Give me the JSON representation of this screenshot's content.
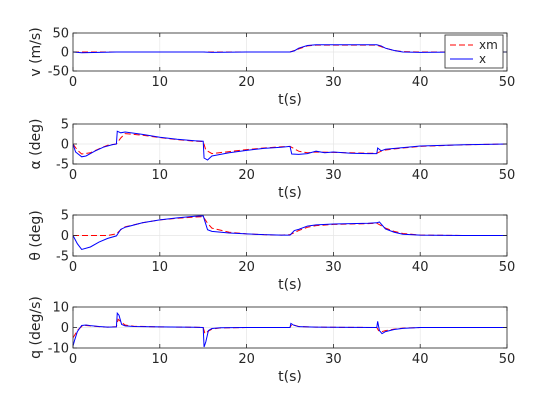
{
  "chart_data": [
    {
      "type": "line",
      "ylabel": "v (m/s)",
      "xlabel": "t(s)",
      "xlim": [
        0,
        50
      ],
      "ylim": [
        -50,
        50
      ],
      "xticks": [
        "0",
        "10",
        "20",
        "30",
        "40",
        "50"
      ],
      "yticks": [
        "-50",
        "0",
        "50"
      ],
      "grid": true,
      "legend": {
        "placement": "top-right",
        "entries": [
          "xm",
          "x"
        ]
      },
      "series": [
        {
          "name": "xm",
          "color": "#ff0000",
          "dash": "dashed",
          "x": [
            0,
            5,
            10,
            15,
            20,
            25,
            26,
            27,
            28,
            30,
            33,
            35,
            36,
            37,
            38,
            40,
            45,
            50
          ],
          "y": [
            0,
            0,
            0,
            0,
            0,
            0,
            8,
            16,
            18,
            18,
            18,
            18,
            10,
            4,
            1,
            0,
            0,
            0
          ]
        },
        {
          "name": "x",
          "color": "#0000ff",
          "dash": "solid",
          "x": [
            0,
            1,
            5,
            6,
            10,
            15,
            16,
            20,
            25,
            25.5,
            26,
            27,
            28,
            30,
            33,
            35,
            35.5,
            36,
            37,
            38,
            40,
            45,
            50
          ],
          "y": [
            0,
            -2,
            0,
            0,
            0,
            0,
            -1,
            0,
            0,
            3,
            10,
            17,
            19,
            19,
            19,
            19,
            16,
            10,
            4,
            0,
            -1,
            0,
            0
          ]
        }
      ]
    },
    {
      "type": "line",
      "ylabel": "α (deg)",
      "xlabel": "t(s)",
      "xlim": [
        0,
        50
      ],
      "ylim": [
        -5,
        5
      ],
      "xticks": [
        "0",
        "10",
        "20",
        "30",
        "40",
        "50"
      ],
      "yticks": [
        "-5",
        "0",
        "5"
      ],
      "grid": true,
      "series": [
        {
          "name": "xm",
          "color": "#ff0000",
          "dash": "dashed",
          "x": [
            0,
            0.5,
            1,
            2,
            3,
            4,
            5,
            5.5,
            6,
            8,
            10,
            12,
            14,
            15,
            15.3,
            16,
            18,
            20,
            22,
            24,
            25,
            26,
            27,
            28,
            30,
            32,
            34,
            35,
            35.5,
            36,
            38,
            40,
            45,
            50
          ],
          "y": [
            0,
            -1.5,
            -2.5,
            -2.2,
            -1.2,
            -0.3,
            0,
            1.5,
            2.6,
            2.2,
            1.6,
            1.1,
            0.7,
            0.6,
            -1.5,
            -2.4,
            -1.9,
            -1.4,
            -1.0,
            -0.7,
            -0.6,
            -1.8,
            -2.2,
            -2.0,
            -2.1,
            -2.2,
            -2.3,
            -2.3,
            -1.8,
            -1.5,
            -1.0,
            -0.6,
            -0.2,
            0
          ]
        },
        {
          "name": "x",
          "color": "#0000ff",
          "dash": "solid",
          "x": [
            0,
            0.3,
            1,
            1.5,
            2.5,
            3.5,
            4.5,
            5,
            5.1,
            5.5,
            6,
            8,
            10,
            12,
            14,
            15,
            15.1,
            15.5,
            16,
            18,
            20,
            22,
            24,
            25,
            25.2,
            26,
            27,
            28,
            29,
            30,
            32,
            34,
            35,
            35.1,
            35.5,
            36,
            38,
            40,
            45,
            50
          ],
          "y": [
            0,
            -2,
            -3.2,
            -3.0,
            -1.8,
            -0.8,
            -0.2,
            0,
            3.2,
            2.8,
            3.0,
            2.4,
            1.7,
            1.2,
            0.8,
            0.7,
            -3.5,
            -4.0,
            -3.0,
            -2.2,
            -1.6,
            -1.1,
            -0.8,
            -0.6,
            -2.5,
            -2.6,
            -2.4,
            -1.8,
            -2.2,
            -2.0,
            -2.3,
            -2.4,
            -2.4,
            -1.0,
            -1.7,
            -1.3,
            -0.9,
            -0.5,
            -0.2,
            0
          ]
        }
      ]
    },
    {
      "type": "line",
      "ylabel": "θ (deg)",
      "xlabel": "t(s)",
      "xlim": [
        0,
        50
      ],
      "ylim": [
        -5,
        5
      ],
      "xticks": [
        "0",
        "10",
        "20",
        "30",
        "40",
        "50"
      ],
      "yticks": [
        "-5",
        "0",
        "5"
      ],
      "grid": true,
      "series": [
        {
          "name": "xm",
          "color": "#ff0000",
          "dash": "dashed",
          "x": [
            0,
            4,
            5,
            5.5,
            6,
            8,
            10,
            12,
            14,
            15,
            15.5,
            16,
            18,
            20,
            22,
            24,
            25,
            26,
            27,
            28,
            30,
            32,
            34,
            35,
            36,
            37,
            38,
            40,
            45,
            50
          ],
          "y": [
            0,
            0,
            0.4,
            1.4,
            2.1,
            3.1,
            3.8,
            4.2,
            4.5,
            4.6,
            3.0,
            1.8,
            0.8,
            0.4,
            0.2,
            0.1,
            0.2,
            1.2,
            2.0,
            2.4,
            2.7,
            2.8,
            2.9,
            3.0,
            1.8,
            1.0,
            0.5,
            0.1,
            0,
            0
          ]
        },
        {
          "name": "x",
          "color": "#0000ff",
          "dash": "solid",
          "x": [
            0,
            0.5,
            1,
            2,
            3,
            4,
            5,
            5.5,
            6,
            8,
            10,
            12,
            14,
            15,
            15.5,
            16,
            18,
            20,
            22,
            24,
            25,
            25.5,
            26,
            27,
            28,
            30,
            32,
            34,
            35,
            35.3,
            36,
            37,
            38,
            40,
            45,
            50
          ],
          "y": [
            0,
            -2.0,
            -3.4,
            -2.8,
            -1.6,
            -0.7,
            -0.1,
            1.5,
            2.0,
            3.1,
            3.8,
            4.3,
            4.7,
            4.8,
            1.4,
            1.0,
            0.6,
            0.4,
            0.2,
            0.1,
            0.1,
            1.2,
            1.5,
            2.3,
            2.6,
            2.8,
            2.9,
            3.0,
            3.1,
            3.3,
            1.6,
            0.8,
            0.3,
            0.1,
            0,
            0
          ]
        }
      ]
    },
    {
      "type": "line",
      "ylabel": "q (deg/s)",
      "xlabel": "t(s)",
      "xlim": [
        0,
        50
      ],
      "ylim": [
        -10,
        10
      ],
      "xticks": [
        "0",
        "10",
        "20",
        "30",
        "40",
        "50"
      ],
      "yticks": [
        "-10",
        "0",
        "10"
      ],
      "grid": true,
      "series": [
        {
          "name": "xm",
          "color": "#ff0000",
          "dash": "dashed",
          "x": [
            0,
            0.3,
            0.6,
            1,
            1.5,
            2,
            3,
            4,
            5,
            5.2,
            5.6,
            6,
            7,
            10,
            14,
            15,
            15.2,
            15.5,
            16,
            17,
            20,
            25,
            25.2,
            25.6,
            26,
            28,
            30,
            35,
            35.2,
            35.6,
            36,
            37,
            38,
            40,
            45,
            50
          ],
          "y": [
            -5,
            -3,
            -1,
            0.5,
            1,
            0.8,
            0.4,
            0.2,
            0.4,
            4,
            2.5,
            1.2,
            0.6,
            0.3,
            0.1,
            0,
            -3,
            -2,
            -0.8,
            -0.2,
            0,
            0,
            1.5,
            1,
            0.5,
            0.2,
            0.1,
            0,
            -1.5,
            -2,
            -1.5,
            -0.8,
            -0.3,
            0,
            0,
            0
          ]
        },
        {
          "name": "x",
          "color": "#0000ff",
          "dash": "solid",
          "x": [
            0,
            0.2,
            0.5,
            1,
            1.5,
            2,
            3,
            4,
            5,
            5.1,
            5.3,
            5.6,
            6,
            7,
            10,
            14,
            15,
            15.1,
            15.3,
            15.6,
            16,
            17,
            20,
            25,
            25.1,
            25.4,
            26,
            28,
            30,
            35,
            35.1,
            35.3,
            35.6,
            36,
            37,
            38,
            40,
            45,
            50
          ],
          "y": [
            -9,
            -6,
            -2,
            1,
            1.2,
            0.9,
            0.5,
            0.2,
            0.3,
            7,
            6,
            1.5,
            0.8,
            0.5,
            0.3,
            0.1,
            0,
            -9.5,
            -7,
            -1.5,
            -0.5,
            -0.1,
            0,
            0,
            2,
            1.2,
            0.4,
            0.2,
            0.1,
            0,
            3,
            -1.5,
            -3,
            -2,
            -1,
            -0.4,
            0,
            0,
            0
          ]
        }
      ]
    }
  ]
}
